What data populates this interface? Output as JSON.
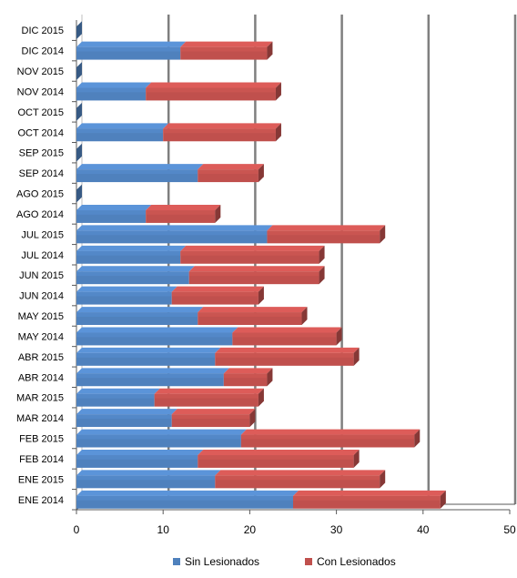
{
  "chart_data": {
    "type": "bar",
    "orientation": "horizontal",
    "stacked": true,
    "title": "",
    "xlabel": "",
    "ylabel": "",
    "xlim": [
      0,
      50
    ],
    "x_ticks": [
      "0",
      "10",
      "20",
      "30",
      "40",
      "50"
    ],
    "grid": true,
    "legend_position": "bottom",
    "categories": [
      "ENE 2014",
      "ENE 2015",
      "FEB 2014",
      "FEB 2015",
      "MAR 2014",
      "MAR 2015",
      "ABR 2014",
      "ABR 2015",
      "MAY 2014",
      "MAY 2015",
      "JUN 2014",
      "JUN 2015",
      "JUL 2014",
      "JUL 2015",
      "AGO 2014",
      "AGO 2015",
      "SEP 2014",
      "SEP 2015",
      "OCT 2014",
      "OCT 2015",
      "NOV 2014",
      "NOV 2015",
      "DIC 2014",
      "DIC 2015"
    ],
    "series": [
      {
        "name": "Sin Lesionados",
        "color": "#4f81bd",
        "values": [
          25,
          16,
          14,
          19,
          11,
          9,
          17,
          16,
          18,
          14,
          11,
          13,
          12,
          22,
          8,
          0,
          14,
          0,
          10,
          0,
          8,
          0,
          12,
          0
        ]
      },
      {
        "name": "Con Lesionados",
        "color": "#c0504d",
        "values": [
          17,
          19,
          18,
          20,
          9,
          12,
          5,
          16,
          12,
          12,
          10,
          15,
          16,
          13,
          8,
          0,
          7,
          0,
          13,
          0,
          15,
          0,
          10,
          0
        ]
      }
    ]
  }
}
